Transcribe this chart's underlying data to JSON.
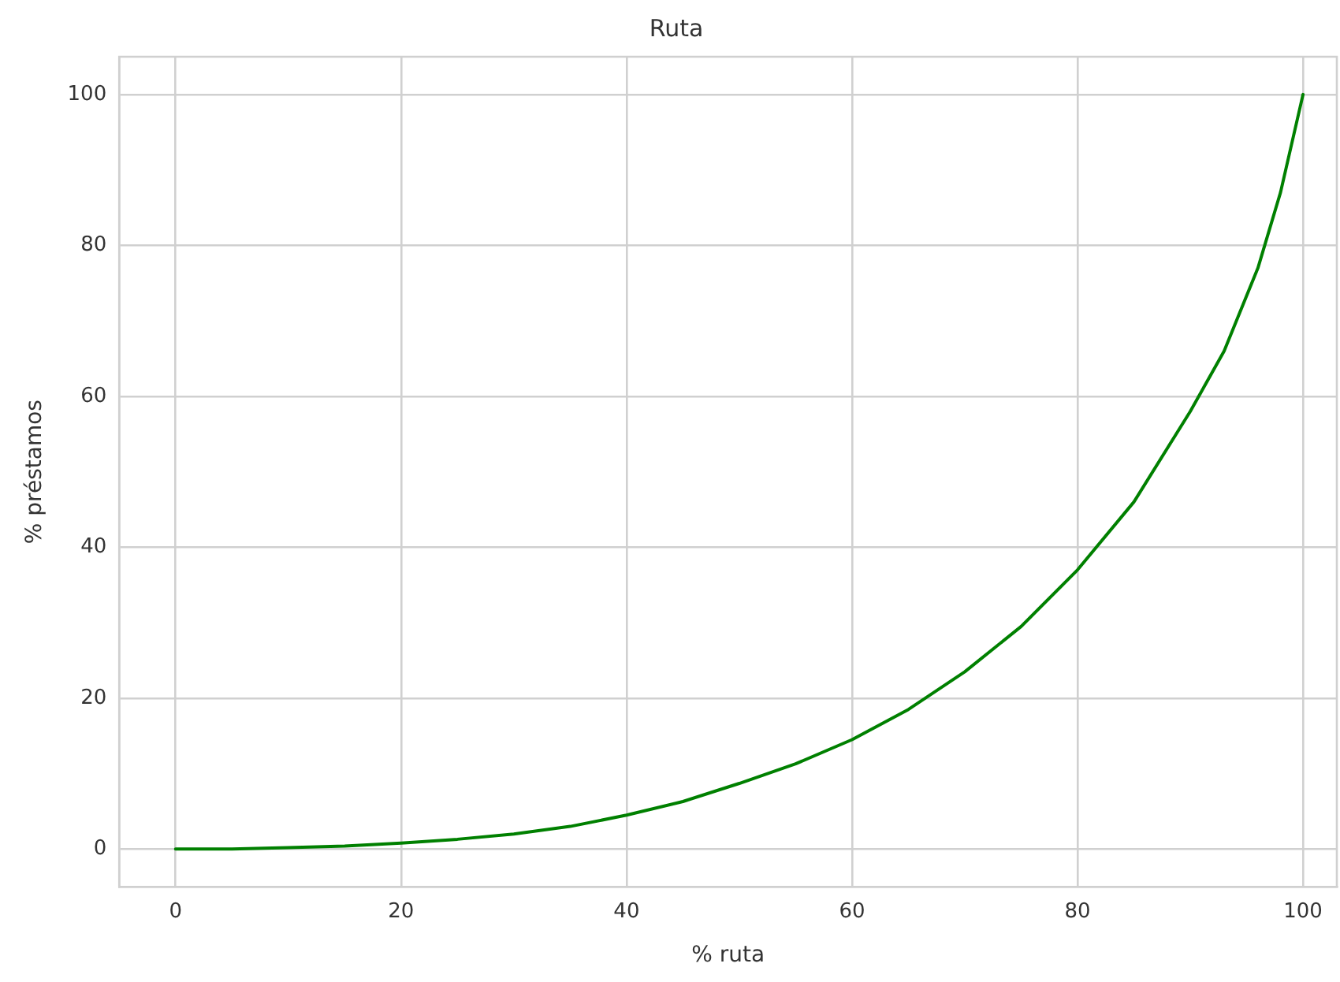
{
  "chart_data": {
    "type": "line",
    "title": "Ruta",
    "xlabel": "% ruta",
    "ylabel": "% préstamos",
    "x": [
      0,
      5,
      10,
      15,
      20,
      25,
      30,
      35,
      40,
      45,
      50,
      55,
      60,
      65,
      70,
      75,
      80,
      85,
      90,
      93,
      96,
      98,
      100
    ],
    "series": [
      {
        "color": "#008000",
        "values": [
          0,
          0,
          0.2,
          0.4,
          0.8,
          1.3,
          2,
          3,
          4.5,
          6.3,
          8.7,
          11.3,
          14.5,
          18.5,
          23.5,
          29.5,
          37,
          46,
          58,
          66,
          77,
          87,
          100
        ]
      }
    ],
    "xlim": [
      -5,
      103
    ],
    "xticks": [
      0,
      20,
      40,
      60,
      80,
      100
    ],
    "ylim": [
      -5,
      105
    ],
    "yticks": [
      0,
      20,
      40,
      60,
      80,
      100
    ],
    "grid": true,
    "legend": false,
    "marker": "none",
    "line_style": "solid"
  }
}
